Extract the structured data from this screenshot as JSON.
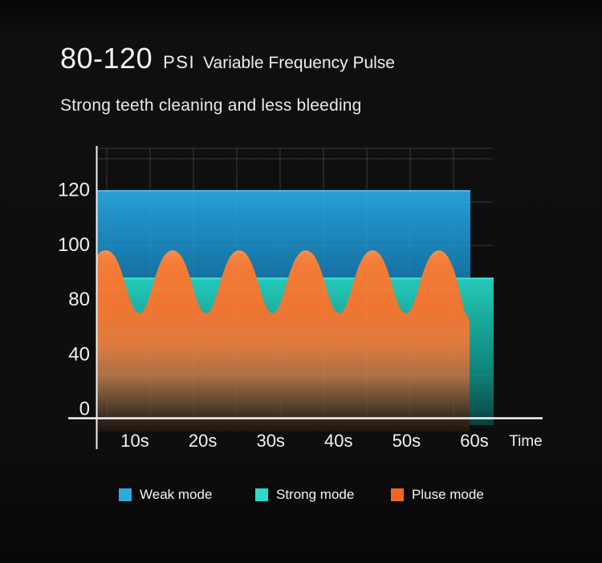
{
  "header": {
    "psi_range": "80-120",
    "psi_unit": "PSI",
    "title": "Variable Frequency Pulse",
    "subtitle": "Strong teeth cleaning and less bleeding"
  },
  "chart_data": {
    "type": "area",
    "title": "80-120 PSI Variable Frequency Pulse",
    "x_axis": {
      "tick_labels": [
        "10s",
        "20s",
        "30s",
        "40s",
        "50s",
        "60s"
      ],
      "axis_label": "Time"
    },
    "y_axis": {
      "tick_labels": [
        120,
        100,
        80,
        40,
        0
      ],
      "unit": "PSI",
      "range": [
        0,
        120
      ]
    },
    "grid": "on",
    "series": [
      {
        "name": "Weak mode",
        "type": "band",
        "value_psi": 120,
        "duration_s": 60,
        "color": "#29abe2"
      },
      {
        "name": "Strong mode",
        "type": "band",
        "value_psi": 88,
        "duration_s": 62,
        "color": "#2bd9c8"
      },
      {
        "name": "Pluse mode",
        "type": "pulse_wave",
        "peak_psi": 98,
        "trough_psi": 70,
        "cycles": 6,
        "duration_s": 60,
        "color": "#f26522"
      }
    ],
    "legend": {
      "position": "bottom",
      "items": [
        "Weak mode",
        "Strong mode",
        "Pluse mode"
      ]
    }
  }
}
